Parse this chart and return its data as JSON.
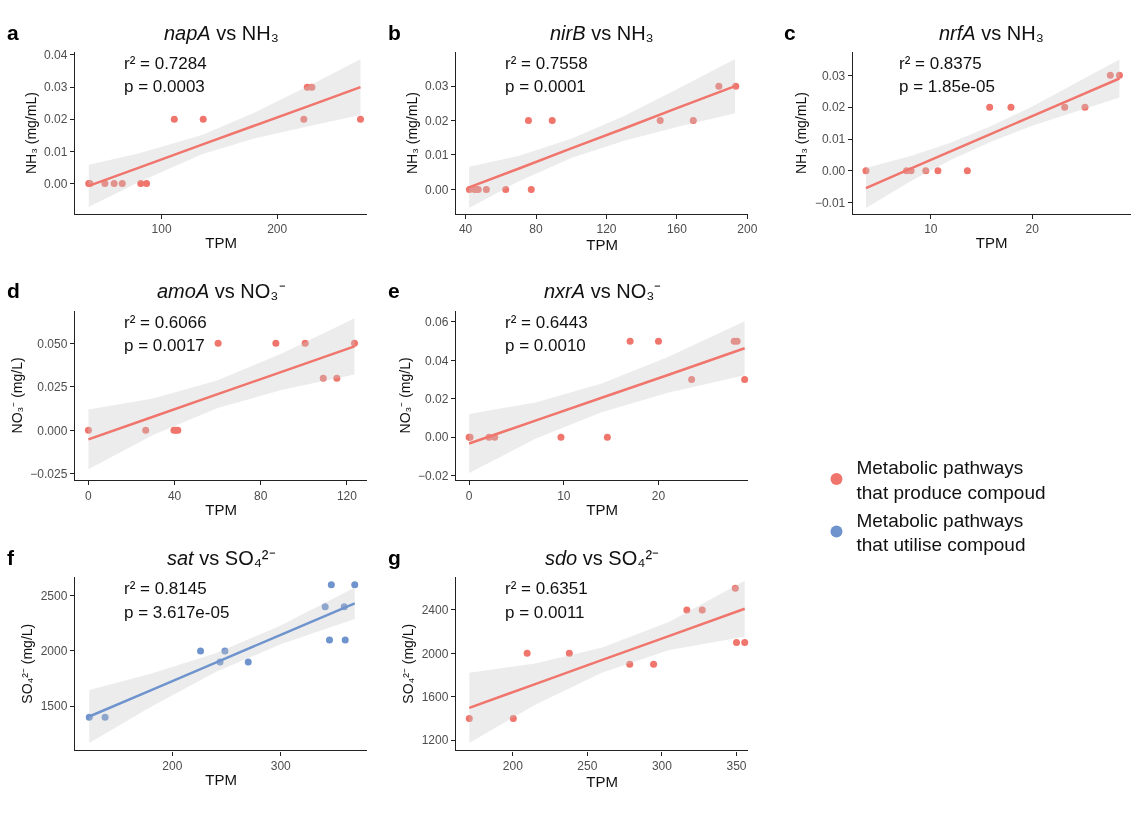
{
  "chart_data": [
    {
      "type": "scatter",
      "title": "napA vs NH₃",
      "xlabel": "TPM",
      "ylabel": "NH₃ (mg/mL)",
      "annotations": [
        "a",
        "r² = 0.7284",
        "p = 0.0003"
      ],
      "xlim": [
        25,
        278
      ],
      "xticks": [
        100,
        200
      ],
      "ylim": [
        -0.0094,
        0.0408
      ],
      "yticks": [
        {
          "value": 0,
          "label": "0.00"
        },
        {
          "value": 0.01,
          "label": "0.01"
        },
        {
          "value": 0.02,
          "label": "0.02"
        },
        {
          "value": 0.03,
          "label": "0.03"
        },
        {
          "value": 0.04,
          "label": "0.04"
        }
      ],
      "legend": "right",
      "marker": "circle",
      "series": [
        {
          "name": "Metabolic pathways that produce compoud",
          "color": "#f0756c",
          "x": [
            37,
            38,
            51,
            59,
            66,
            82,
            87,
            111,
            136,
            223,
            226,
            230,
            272
          ],
          "values": [
            0,
            0,
            0,
            0,
            0,
            0,
            0,
            0.02,
            0.02,
            0.02,
            0.03,
            0.03,
            0.02
          ]
        },
        {
          "type": "line",
          "color": "#f0756c",
          "marker": "none",
          "line_style": "solid",
          "x": [
            37,
            80,
            135,
            180,
            230,
            272
          ],
          "values": [
            -0.0007,
            0.0049,
            0.0121,
            0.018,
            0.0245,
            0.03
          ],
          "lower": [
            -0.0073,
            0.0004,
            0.0091,
            0.014,
            0.0181,
            0.0213
          ],
          "upper": [
            0.0059,
            0.0094,
            0.0151,
            0.022,
            0.0309,
            0.0387
          ]
        }
      ]
    },
    {
      "type": "scatter",
      "title": "nirB vs NH₃",
      "xlabel": "TPM",
      "ylabel": "NH₃ (mg/mL)",
      "annotations": [
        "b",
        "r² = 0.7558",
        "p = 0.0001"
      ],
      "xlim": [
        34.5,
        200.6
      ],
      "xticks": [
        40,
        80,
        120,
        160,
        200
      ],
      "ylim": [
        -0.0071,
        0.0398
      ],
      "yticks": [
        {
          "value": 0,
          "label": "0.00"
        },
        {
          "value": 0.01,
          "label": "0.01"
        },
        {
          "value": 0.02,
          "label": "0.02"
        },
        {
          "value": 0.03,
          "label": "0.03"
        }
      ],
      "legend": "right",
      "marker": "circle",
      "series": [
        {
          "name": "Metabolic pathways that produce compoud",
          "color": "#f0756c",
          "x": [
            42.2,
            45.2,
            46,
            47.2,
            51.8,
            62.8,
            77.3,
            75.7,
            89.2,
            150.5,
            169.3,
            183.8,
            193.4
          ],
          "values": [
            0,
            0,
            0,
            0,
            0,
            0,
            0,
            0.02,
            0.02,
            0.02,
            0.02,
            0.03,
            0.03
          ]
        },
        {
          "type": "line",
          "color": "#f0756c",
          "marker": "none",
          "line_style": "solid",
          "x": [
            42,
            70,
            100,
            130,
            160,
            193
          ],
          "values": [
            0.0006,
            0.006,
            0.0119,
            0.0177,
            0.0236,
            0.03
          ],
          "lower": [
            -0.0054,
            0.0023,
            0.0091,
            0.0141,
            0.0181,
            0.0221
          ],
          "upper": [
            0.0066,
            0.0097,
            0.0147,
            0.0213,
            0.0291,
            0.0379
          ]
        }
      ]
    },
    {
      "type": "scatter",
      "title": "nrfA vs NH₃",
      "xlabel": "TPM",
      "ylabel": "NH₃ (mg/mL)",
      "annotations": [
        "c",
        "r² = 0.8375",
        "p = 1.85e-05"
      ],
      "xlim": [
        2.3,
        29.7
      ],
      "xticks": [
        10,
        20
      ],
      "ylim": [
        -0.0135,
        0.0372
      ],
      "yticks": [
        {
          "value": -0.01,
          "label": "−0.01"
        },
        {
          "value": 0,
          "label": "0.00"
        },
        {
          "value": 0.01,
          "label": "0.01"
        },
        {
          "value": 0.02,
          "label": "0.02"
        },
        {
          "value": 0.03,
          "label": "0.03"
        }
      ],
      "legend": "right",
      "marker": "circle",
      "series": [
        {
          "name": "Metabolic pathways that produce compoud",
          "color": "#f0756c",
          "x": [
            3.6,
            7.6,
            8.05,
            9.5,
            10.7,
            13.6,
            15.8,
            17.9,
            23.2,
            25.2,
            27.7,
            28.6
          ],
          "values": [
            0,
            0,
            0,
            0,
            0,
            0,
            0.02,
            0.02,
            0.02,
            0.02,
            0.03,
            0.03
          ]
        },
        {
          "type": "line",
          "color": "#f0756c",
          "marker": "none",
          "line_style": "solid",
          "x": [
            3.6,
            8,
            12,
            16,
            20,
            24,
            28.6
          ],
          "values": [
            -0.0054,
            0.0007,
            0.0062,
            0.0117,
            0.0172,
            0.0227,
            0.029
          ],
          "lower": [
            -0.0117,
            -0.0033,
            0.0035,
            0.0092,
            0.0142,
            0.0184,
            0.023
          ],
          "upper": [
            0.0009,
            0.0047,
            0.0089,
            0.0142,
            0.0202,
            0.027,
            0.035
          ]
        }
      ]
    },
    {
      "type": "scatter",
      "title": "amoA vs NO₃⁻",
      "xlabel": "TPM",
      "ylabel": "NO₃⁻ (mg/L)",
      "annotations": [
        "d",
        "r² = 0.6066",
        "p = 0.0017"
      ],
      "xlim": [
        -6.3,
        129.5
      ],
      "xticks": [
        0,
        40,
        80,
        120
      ],
      "ylim": [
        -0.0286,
        0.0688
      ],
      "yticks": [
        {
          "value": -0.025,
          "label": "−0.025"
        },
        {
          "value": 0,
          "label": "0.000"
        },
        {
          "value": 0.025,
          "label": "0.025"
        },
        {
          "value": 0.05,
          "label": "0.050"
        }
      ],
      "legend": "right",
      "marker": "circle",
      "series": [
        {
          "name": "Metabolic pathways that produce compoud",
          "color": "#f0756c",
          "x": [
            0,
            26.6,
            39.7,
            40.6,
            41.5,
            60.2,
            87,
            100.6,
            109,
            115.3,
            123.5
          ],
          "values": [
            0,
            0,
            0,
            0,
            0,
            0.05,
            0.05,
            0.05,
            0.03,
            0.03,
            0.05
          ]
        },
        {
          "type": "line",
          "color": "#f0756c",
          "marker": "none",
          "line_style": "solid",
          "x": [
            0,
            30,
            60,
            90,
            123.5
          ],
          "values": [
            -0.0052,
            0.0078,
            0.0208,
            0.0338,
            0.0483
          ],
          "lower": [
            -0.0224,
            -0.0027,
            0.0128,
            0.0233,
            0.0321
          ],
          "upper": [
            0.012,
            0.0183,
            0.0288,
            0.0443,
            0.0645
          ]
        }
      ]
    },
    {
      "type": "scatter",
      "title": "nxrA vs NO₃⁻",
      "xlabel": "TPM",
      "ylabel": "NO₃⁻ (mg/L)",
      "annotations": [
        "e",
        "r² = 0.6443",
        "p = 0.0010"
      ],
      "xlim": [
        -1.4,
        29.5
      ],
      "xticks": [
        0,
        10,
        20
      ],
      "ylim": [
        -0.0224,
        0.0659
      ],
      "yticks": [
        {
          "value": -0.02,
          "label": "−0.02"
        },
        {
          "value": 0,
          "label": "0.00"
        },
        {
          "value": 0.02,
          "label": "0.02"
        },
        {
          "value": 0.04,
          "label": "0.04"
        },
        {
          "value": 0.06,
          "label": "0.06"
        }
      ],
      "legend": "right",
      "marker": "circle",
      "series": [
        {
          "name": "Metabolic pathways that produce compoud",
          "color": "#f0756c",
          "x": [
            0,
            0.1,
            2.1,
            2.7,
            9.7,
            14.6,
            17,
            20,
            23.5,
            28,
            28.3,
            29.1
          ],
          "values": [
            0,
            0,
            0,
            0,
            0,
            0,
            0.05,
            0.05,
            0.03,
            0.05,
            0.05,
            0.03
          ]
        },
        {
          "type": "line",
          "color": "#f0756c",
          "marker": "none",
          "line_style": "solid",
          "x": [
            0,
            7,
            14,
            21,
            29.1
          ],
          "values": [
            -0.0033,
            0.0086,
            0.0205,
            0.0324,
            0.0463
          ],
          "lower": [
            -0.0187,
            -0.0009,
            0.013,
            0.0231,
            0.0322
          ],
          "upper": [
            0.0121,
            0.0181,
            0.028,
            0.0417,
            0.0604
          ]
        }
      ]
    },
    {
      "type": "scatter",
      "title": "sat vs SO₄²⁻",
      "xlabel": "TPM",
      "ylabel": "SO₄²⁻ (mg/L)",
      "annotations": [
        "f",
        "r² = 0.8145",
        "p = 3.617e-05"
      ],
      "xlim": [
        110,
        380
      ],
      "xticks": [
        200,
        300
      ],
      "ylim": [
        1098,
        2671
      ],
      "yticks": [
        1500,
        2000,
        2500
      ],
      "legend": "right",
      "marker": "circle",
      "series": [
        {
          "name": "Metabolic pathways that utilise compoud",
          "color": "#6f94cd",
          "x": [
            123.3,
            137.9,
            226,
            244,
            248.5,
            270,
            341,
            345,
            346.7,
            358.6,
            359.5,
            368.3
          ],
          "values": [
            1400,
            1400,
            2000,
            1900,
            2000,
            1900,
            2400,
            2100,
            2600,
            2400,
            2100,
            2600
          ]
        },
        {
          "type": "line",
          "color": "#6f94cd",
          "marker": "none",
          "line_style": "solid",
          "x": [
            123.3,
            180,
            240,
            300,
            368.3
          ],
          "values": [
            1406,
            1643,
            1895,
            2146,
            2432
          ],
          "lower": [
            1166,
            1493,
            1810,
            2061,
            2289
          ],
          "upper": [
            1646,
            1793,
            1980,
            2231,
            2575
          ]
        }
      ]
    },
    {
      "type": "scatter",
      "title": "sdo vs SO₄²⁻",
      "xlabel": "TPM",
      "ylabel": "SO₄²⁻ (mg/L)",
      "annotations": [
        "g",
        "r² = 0.6351",
        "p = 0.0011"
      ],
      "xlim": [
        161.8,
        358
      ],
      "xticks": [
        200,
        250,
        300,
        350
      ],
      "ylim": [
        1104,
        2704
      ],
      "yticks": [
        1200,
        1600,
        2000,
        2400
      ],
      "legend": "right",
      "marker": "circle",
      "series": [
        {
          "name": "Metabolic pathways that produce compoud",
          "color": "#f0756c",
          "x": [
            170.8,
            200.3,
            209.6,
            237.9,
            278.4,
            294.4,
            316.7,
            327,
            349.2,
            350,
            355.5
          ],
          "values": [
            1400,
            1400,
            2000,
            2000,
            1900,
            1900,
            2400,
            2400,
            2600,
            2100,
            2100
          ]
        },
        {
          "type": "line",
          "color": "#f0756c",
          "marker": "none",
          "line_style": "solid",
          "x": [
            170.8,
            215,
            260,
            305,
            355.5
          ],
          "values": [
            1497,
            1716,
            1939,
            2161,
            2411
          ],
          "lower": [
            1174,
            1526,
            1824,
            2031,
            2153
          ],
          "upper": [
            1820,
            1906,
            2054,
            2291,
            2669
          ]
        }
      ]
    }
  ]
}
